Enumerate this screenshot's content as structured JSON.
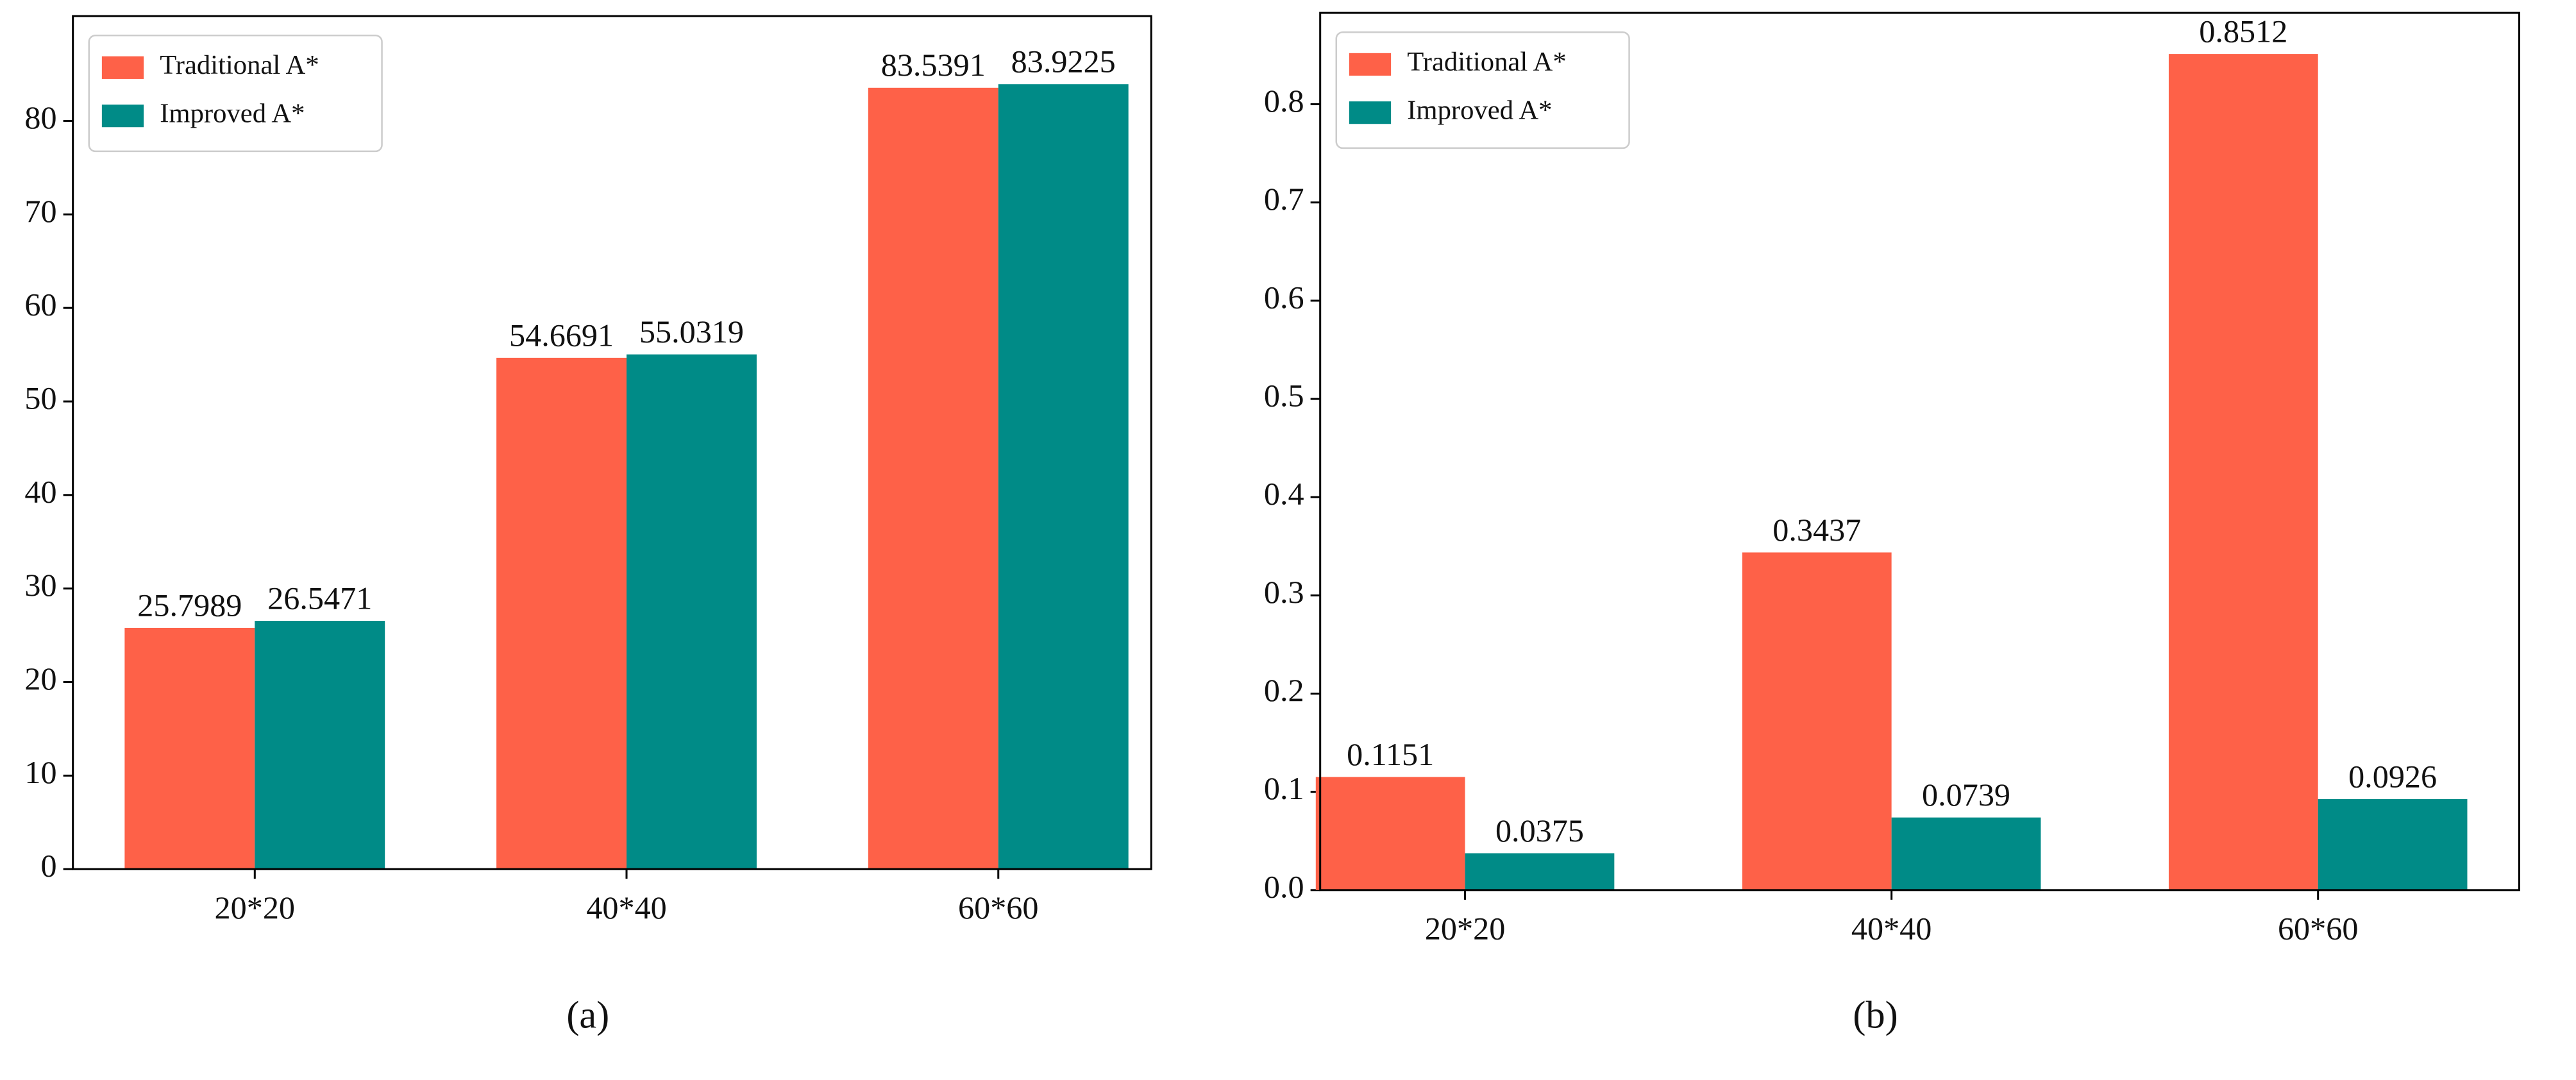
{
  "chart_data": [
    {
      "type": "bar",
      "caption": "(a)",
      "categories": [
        "20*20",
        "40*40",
        "60*60"
      ],
      "series": [
        {
          "name": "Traditional A*",
          "color": "#fe6148",
          "values": [
            25.7989,
            54.6691,
            83.5391
          ]
        },
        {
          "name": "Improved A*",
          "color": "#008b87",
          "values": [
            26.5471,
            55.0319,
            83.9225
          ]
        }
      ],
      "ylim": [
        0,
        91.2
      ],
      "yticks": [
        0,
        10,
        20,
        30,
        40,
        50,
        60,
        70,
        80
      ],
      "legend": "upper left"
    },
    {
      "type": "bar",
      "caption": "(b)",
      "categories": [
        "20*20",
        "40*40",
        "60*60"
      ],
      "series": [
        {
          "name": "Traditional A*",
          "color": "#fe6148",
          "values": [
            0.1151,
            0.3437,
            0.8512
          ]
        },
        {
          "name": "Improved A*",
          "color": "#008b87",
          "values": [
            0.0375,
            0.0739,
            0.0926
          ]
        }
      ],
      "ylim": [
        0,
        0.893
      ],
      "yticks": [
        {
          "value": 0,
          "label": "0.0"
        },
        0.1,
        0.2,
        0.3,
        0.4,
        0.5,
        0.6,
        0.7,
        0.8
      ],
      "legend": "upper left"
    }
  ]
}
